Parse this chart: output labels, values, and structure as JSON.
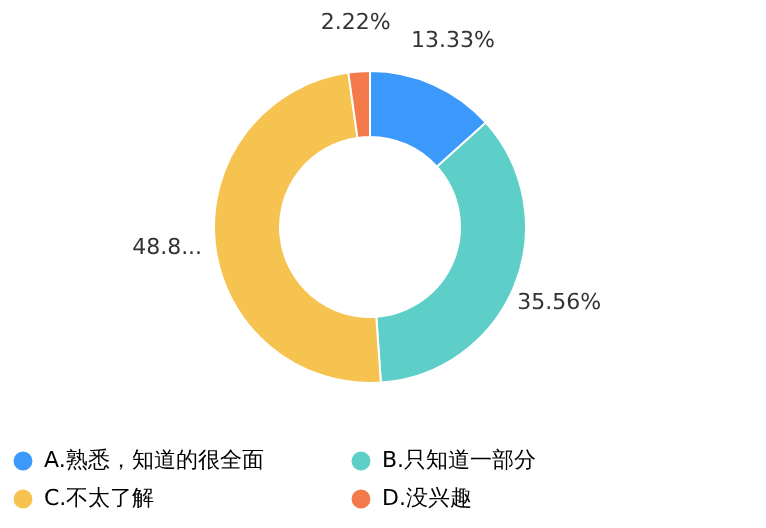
{
  "chart_data": {
    "type": "donut",
    "categories": [
      "A.熟悉，知道的很全面",
      "B.只知道一部分",
      "C.不太了解",
      "D.没兴趣"
    ],
    "values": [
      13.33,
      35.56,
      48.89,
      2.22
    ],
    "colors": [
      "#3a99fb",
      "#5ecfc8",
      "#f6c350",
      "#f47a4b"
    ],
    "value_labels": [
      "13.33%",
      "35.56%",
      "48.8...",
      "2.22%"
    ],
    "legend": "bottom"
  }
}
